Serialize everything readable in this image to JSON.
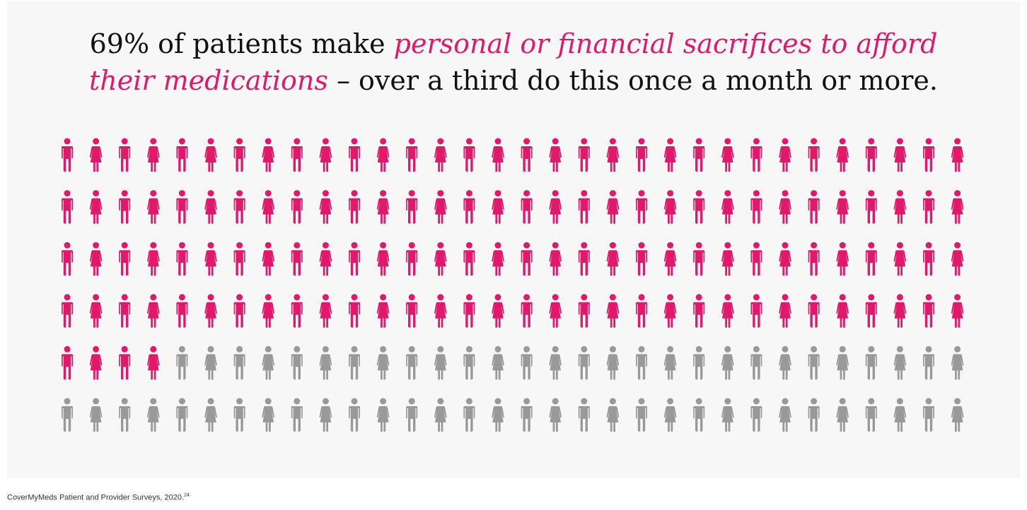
{
  "headline": {
    "part1": "69% of patients make ",
    "part2": "personal or financial sacrifices to afford",
    "part3": "their medications",
    "part4": " – over a third do this once a month or more."
  },
  "colors": {
    "highlight": "#e0196a",
    "neutral": "#999999",
    "text": "#111111",
    "background": "#f7f7f7"
  },
  "icons": {
    "figure_icons": [
      "male-person-icon",
      "female-person-icon"
    ]
  },
  "chart_data": {
    "type": "pictograph",
    "rows": 6,
    "columns": 32,
    "total_icons": 192,
    "highlighted_icons": 132,
    "highlighted_percent": 69,
    "pattern": "alternating male/female figures",
    "highlight_color": "#e0196a",
    "neutral_color": "#999999"
  },
  "source": {
    "text": "CoverMyMeds Patient and Provider Surveys, 2020.",
    "superscript": "24"
  }
}
